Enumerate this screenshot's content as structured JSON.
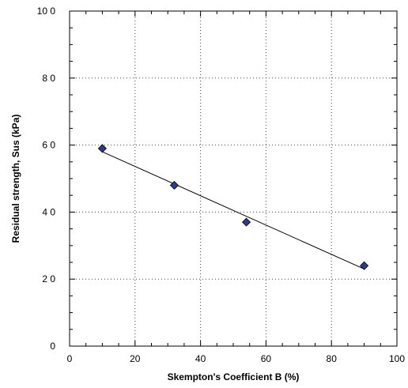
{
  "chart_data": {
    "type": "scatter",
    "title": "",
    "xlabel": "Skempton's Coefficient B (%)",
    "ylabel": "Residual strength, Sus (kPa)",
    "xlim": [
      0,
      100
    ],
    "ylim": [
      0,
      100
    ],
    "x_ticks": [
      0,
      20,
      40,
      60,
      80,
      100
    ],
    "y_ticks": [
      0,
      20,
      40,
      60,
      80,
      100
    ],
    "x_tick_labels": [
      "0",
      "20",
      "40",
      "60",
      "80",
      "100"
    ],
    "y_tick_labels": [
      "0",
      "2 0",
      "4 0",
      "6 0",
      "8 0",
      "10 0"
    ],
    "grid": true,
    "grid_style": "dotted",
    "marker": "diamond",
    "marker_color": "#2e3a8c",
    "points": [
      {
        "x": 10,
        "y": 59
      },
      {
        "x": 32,
        "y": 48
      },
      {
        "x": 54,
        "y": 37
      },
      {
        "x": 90,
        "y": 24
      }
    ],
    "trendline": {
      "from": {
        "x": 10,
        "y": 58
      },
      "to": {
        "x": 90,
        "y": 23
      }
    }
  }
}
